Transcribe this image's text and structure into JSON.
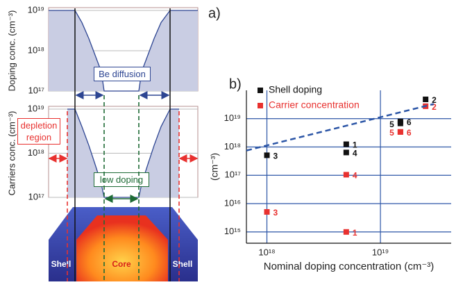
{
  "panel_labels": {
    "a": "a)",
    "b": "b)"
  },
  "schematic": {
    "labels": [
      "Shell",
      "Core",
      "Shell"
    ]
  },
  "chart_data": [
    {
      "type": "area",
      "ylabel": "Doping conc. (cm⁻³)",
      "log_y": true,
      "ylim": [
        1e+17,
        1e+19
      ],
      "yticks": [
        {
          "value": 1e+17,
          "label": "10¹⁷"
        },
        {
          "value": 1e+18,
          "label": "10¹⁸"
        },
        {
          "value": 1e+19,
          "label": "10¹⁹"
        }
      ],
      "grid": true,
      "xlim": [
        0,
        215
      ],
      "x": [
        0,
        38,
        48,
        58,
        68,
        76,
        80,
        130,
        134,
        142,
        152,
        162,
        175,
        215
      ],
      "values": [
        1e+19,
        1e+19,
        5e+18,
        2e+18,
        7e+17,
        3e+17,
        1e+17,
        1e+17,
        3e+17,
        7e+17,
        2e+18,
        5e+18,
        1e+19,
        1e+19
      ],
      "color": "#c9cde3",
      "line_color": "#2d4592",
      "annotations": [
        "Be diffusion"
      ]
    },
    {
      "type": "area",
      "ylabel": "Carriers conc. (cm⁻³)",
      "log_y": true,
      "ylim": [
        1e+17,
        1e+19
      ],
      "yticks": [
        {
          "value": 1e+17,
          "label": "10¹⁷"
        },
        {
          "value": 1e+18,
          "label": "10¹⁸"
        },
        {
          "value": 1e+19,
          "label": "10¹⁹"
        }
      ],
      "grid": true,
      "xlim": [
        0,
        215
      ],
      "x": [
        27,
        38,
        48,
        58,
        68,
        76,
        80,
        130,
        134,
        142,
        152,
        162,
        175,
        188
      ],
      "values": [
        1e+19,
        1e+19,
        4e+18,
        1.5e+18,
        5e+17,
        2e+17,
        1e+17,
        1e+17,
        2e+17,
        5e+17,
        1.5e+18,
        4e+18,
        1e+19,
        1e+19
      ],
      "color": "#c9cde3",
      "line_color": "#2d4592",
      "annotations": [
        "depletion region",
        "low doping"
      ]
    },
    {
      "type": "scatter",
      "xlabel": "Nominal doping concentration (cm⁻³)",
      "ylabel": "(cm⁻³)",
      "log_x": true,
      "log_y": true,
      "xlim": [
        6.6e+17,
        4.2e+19
      ],
      "ylim": [
        400000000000000.0,
        1e+20
      ],
      "xticks": [
        {
          "value": 1e+18,
          "label": "10¹⁸"
        },
        {
          "value": 1e+19,
          "label": "10¹⁹"
        }
      ],
      "yticks": [
        {
          "value": 1000000000000000.0,
          "label": "10¹⁵"
        },
        {
          "value": 1e+16,
          "label": "10¹⁶"
        },
        {
          "value": 1e+17,
          "label": "10¹⁷"
        },
        {
          "value": 1e+18,
          "label": "10¹⁸"
        },
        {
          "value": 1e+19,
          "label": "10¹⁹"
        }
      ],
      "grid": true,
      "grid_color": "#2b55a6",
      "legend": "upper left",
      "series": [
        {
          "name": "Shell doping",
          "color": "#111111",
          "x": [
            1e+18,
            5e+18,
            5e+18,
            1.5e+19,
            1.5e+19,
            2.5e+19
          ],
          "values": [
            5.1e+17,
            1.25e+18,
            6.4e+17,
            8e+18,
            6.8e+18,
            4.8e+19
          ],
          "point_labels": [
            "3",
            "1",
            "4",
            "6",
            "5",
            "2"
          ]
        },
        {
          "name": "Carrier concentration",
          "color": "#e8312f",
          "x": [
            1e+18,
            5e+18,
            5e+18,
            1.5e+19,
            1.5e+19,
            2.5e+19
          ],
          "values": [
            5100000000000000.0,
            1000000000000000.0,
            1.05e+17,
            3.4e+18,
            3.4e+18,
            2.75e+19
          ],
          "point_labels": [
            "3",
            "1",
            "4",
            "6",
            "5",
            "2"
          ]
        },
        {
          "type": "line",
          "color": "#2b55a6",
          "dashed": true,
          "x": [
            6.6e+17,
            2.95e+19
          ],
          "values": [
            7.5e+17,
            3.3e+19
          ]
        }
      ]
    }
  ]
}
